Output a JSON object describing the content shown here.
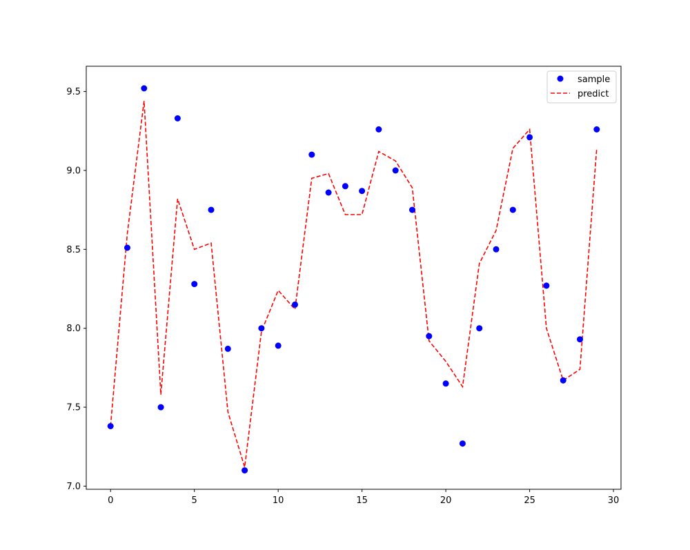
{
  "chart_data": {
    "type": "line",
    "title": "",
    "xlabel": "",
    "ylabel": "",
    "xlim": [
      -1.45,
      30.45
    ],
    "ylim": [
      6.98,
      9.66
    ],
    "grid": false,
    "legend_position": "top-right",
    "x_ticks": [
      0,
      5,
      10,
      15,
      20,
      25,
      30
    ],
    "y_ticks": [
      7.0,
      7.5,
      8.0,
      8.5,
      9.0,
      9.5
    ],
    "x_tick_labels": [
      "0",
      "5",
      "10",
      "15",
      "20",
      "25",
      "30"
    ],
    "y_tick_labels": [
      "7.0",
      "7.5",
      "8.0",
      "8.5",
      "9.0",
      "9.5"
    ],
    "series": [
      {
        "name": "sample",
        "type": "scatter",
        "color": "#0000ff",
        "x": [
          0,
          1,
          2,
          3,
          4,
          5,
          6,
          7,
          8,
          9,
          10,
          11,
          12,
          13,
          14,
          15,
          16,
          17,
          18,
          19,
          20,
          21,
          22,
          23,
          24,
          25,
          26,
          27,
          28,
          29
        ],
        "values": [
          7.38,
          8.51,
          9.52,
          7.5,
          9.33,
          8.28,
          8.75,
          7.87,
          7.1,
          8.0,
          7.89,
          8.15,
          9.1,
          8.86,
          8.9,
          8.87,
          9.26,
          9.0,
          8.75,
          7.95,
          7.65,
          7.27,
          8.0,
          8.5,
          8.75,
          9.21,
          8.27,
          7.67,
          7.93,
          9.26
        ]
      },
      {
        "name": "predict",
        "type": "line",
        "style": "dashed",
        "color": "#ff0000",
        "x": [
          0,
          1,
          2,
          3,
          4,
          5,
          6,
          7,
          8,
          9,
          10,
          11,
          12,
          13,
          14,
          15,
          16,
          17,
          18,
          19,
          20,
          21,
          22,
          23,
          24,
          25,
          26,
          27,
          28,
          29
        ],
        "values": [
          7.38,
          8.6,
          9.44,
          7.58,
          8.82,
          8.5,
          8.54,
          7.47,
          7.12,
          7.98,
          8.24,
          8.12,
          8.95,
          8.98,
          8.72,
          8.72,
          9.12,
          9.06,
          8.89,
          7.92,
          7.79,
          7.63,
          8.41,
          8.62,
          9.14,
          9.26,
          8.0,
          7.67,
          7.74,
          9.14
        ]
      }
    ]
  },
  "legend": {
    "sample_label": "sample",
    "predict_label": "predict"
  }
}
